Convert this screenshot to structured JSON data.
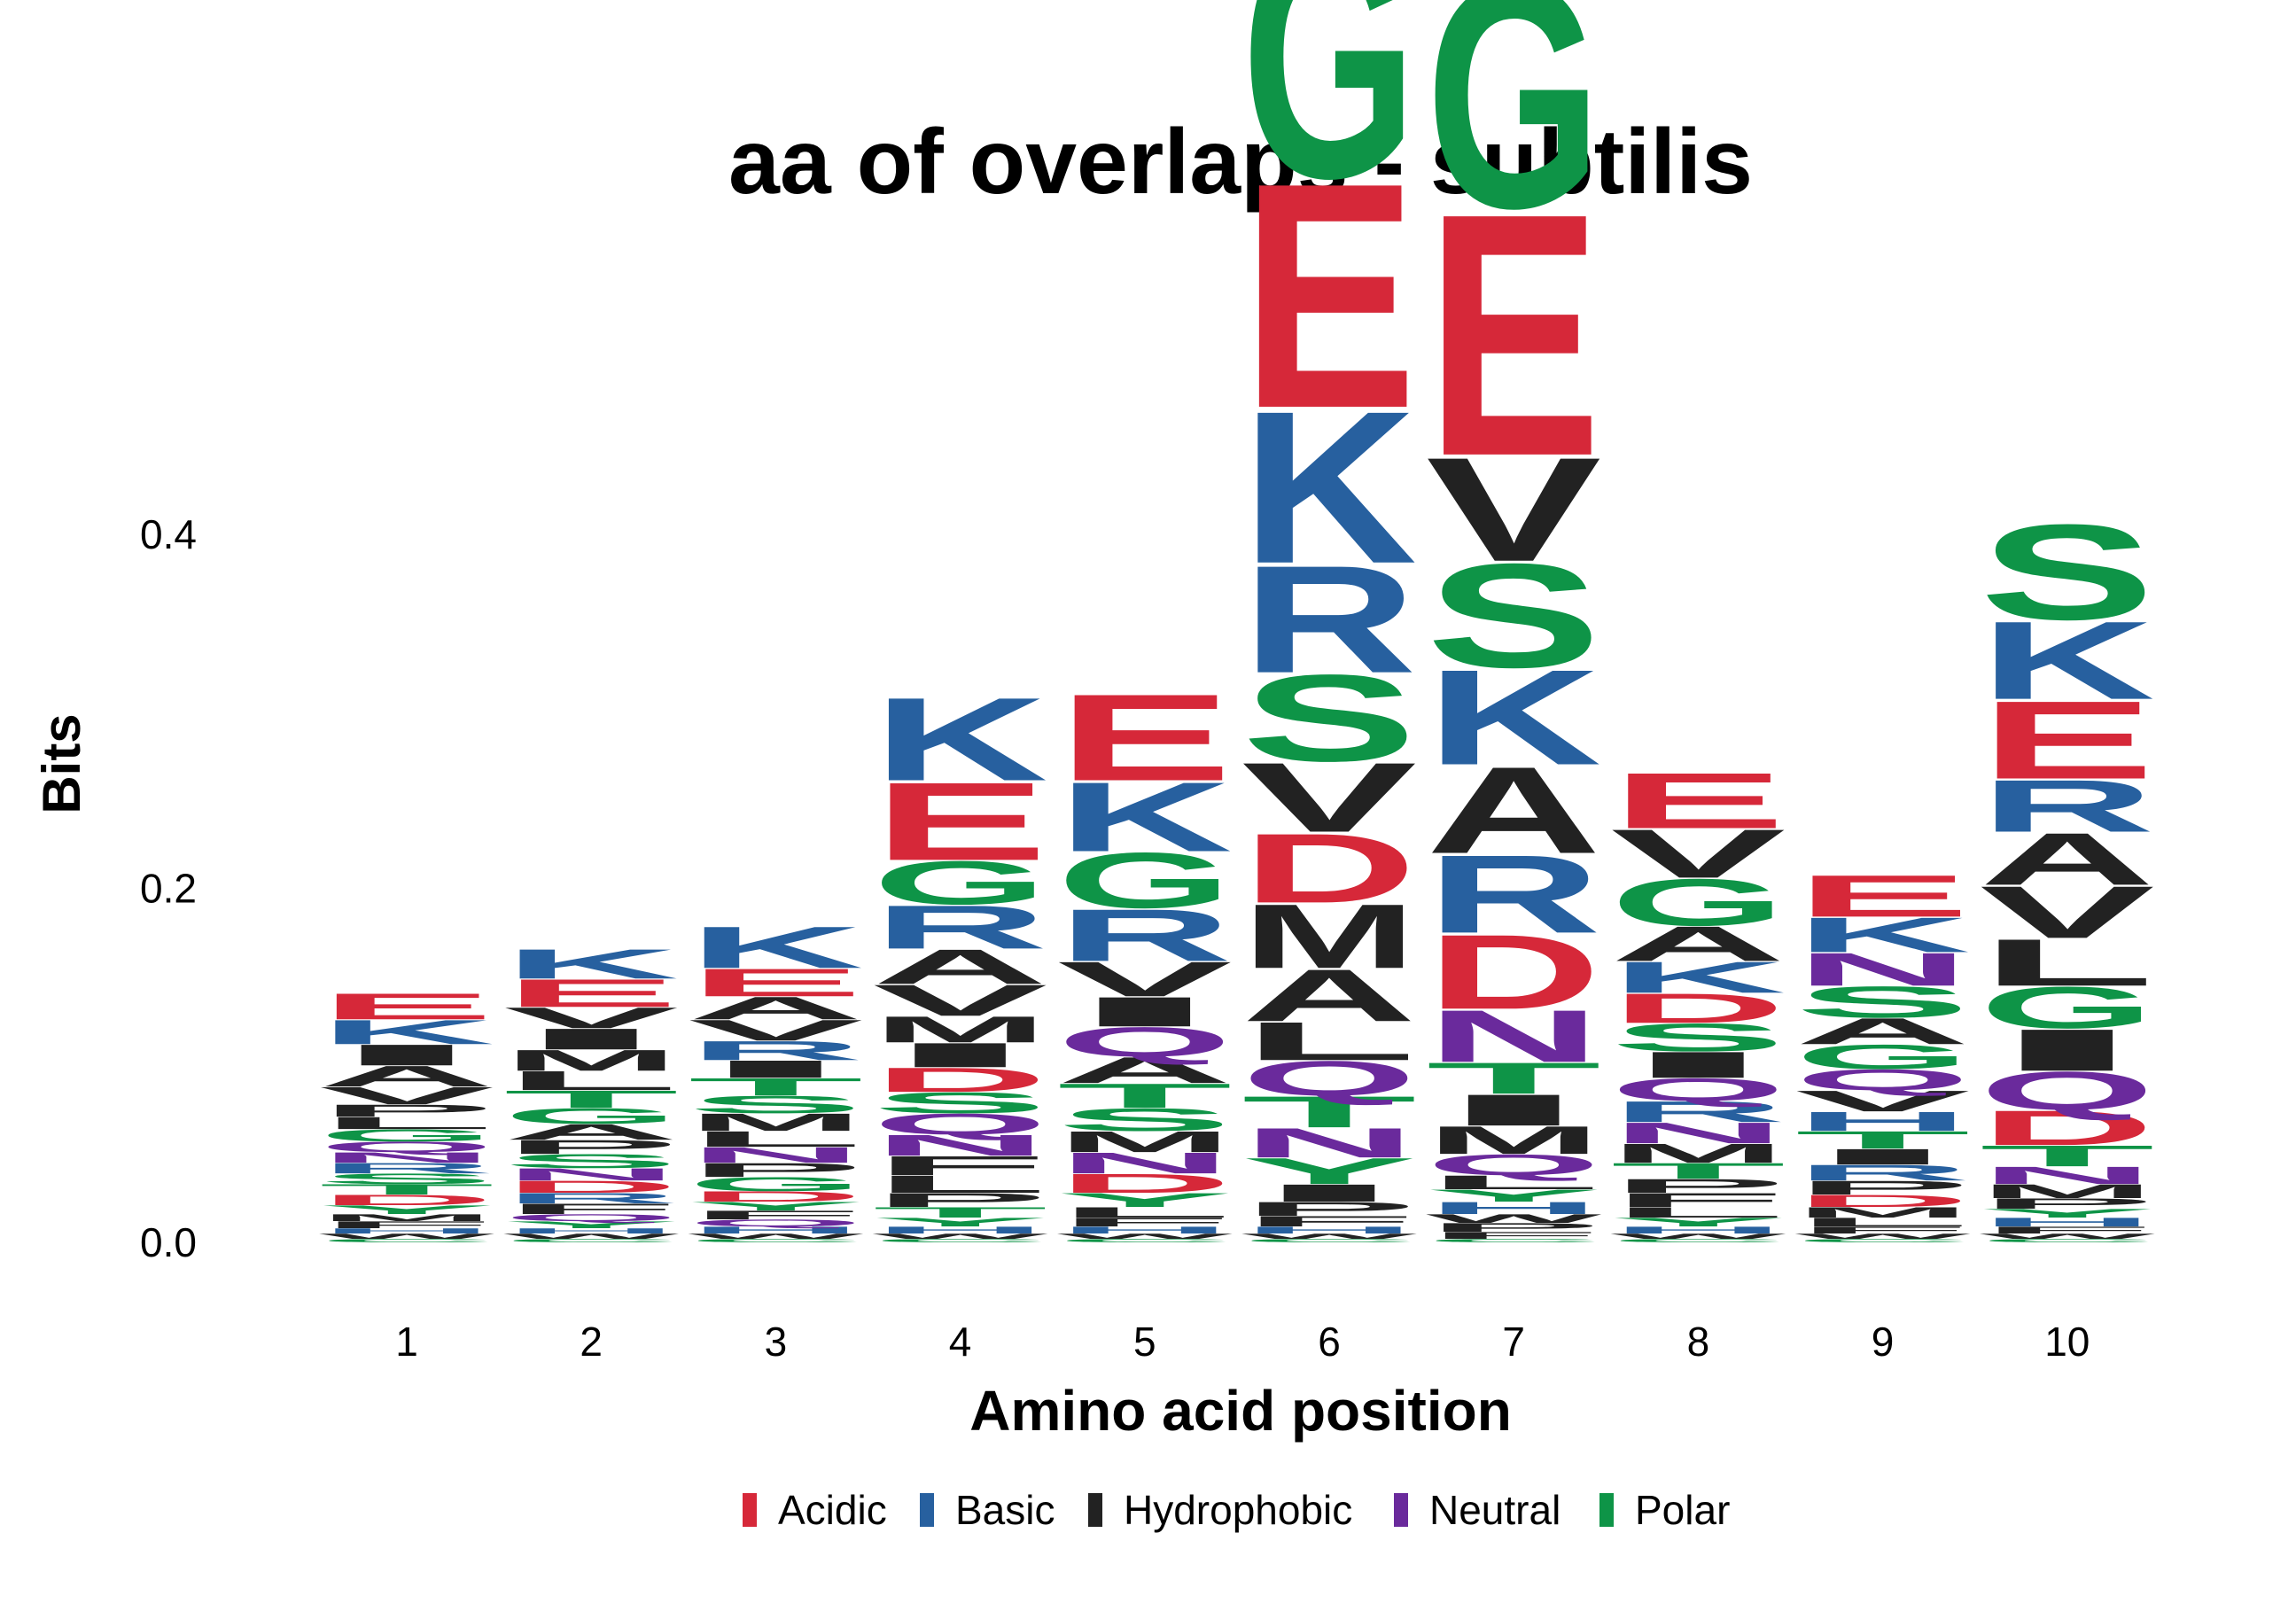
{
  "chart_data": {
    "type": "sequence-logo",
    "title": "aa of overlaps - subtilis",
    "xlabel": "Amino acid position",
    "ylabel": "Bits",
    "ylim": [
      0,
      0.55
    ],
    "yticks": [
      0.0,
      0.2,
      0.4
    ],
    "ytick_labels": [
      "0.0",
      "0.2",
      "0.4"
    ],
    "grid": false,
    "legend_position": "bottom",
    "colors": {
      "Acidic": "#D62839",
      "Basic": "#27609F",
      "Hydrophobic": "#222222",
      "Neutral": "#6A2A9C",
      "Polar": "#0E9447"
    },
    "legend": [
      "Acidic",
      "Basic",
      "Hydrophobic",
      "Neutral",
      "Polar"
    ],
    "residue_class": {
      "D": "Acidic",
      "E": "Acidic",
      "K": "Basic",
      "R": "Basic",
      "H": "Basic",
      "A": "Hydrophobic",
      "V": "Hydrophobic",
      "L": "Hydrophobic",
      "I": "Hydrophobic",
      "M": "Hydrophobic",
      "F": "Hydrophobic",
      "W": "Hydrophobic",
      "P": "Hydrophobic",
      "Q": "Neutral",
      "N": "Neutral",
      "G": "Polar",
      "S": "Polar",
      "T": "Polar",
      "Y": "Polar",
      "C": "Polar"
    },
    "positions": [
      {
        "x": 1,
        "letters": [
          {
            "aa": "C",
            "bits": 0.002
          },
          {
            "aa": "W",
            "bits": 0.003
          },
          {
            "aa": "H",
            "bits": 0.003
          },
          {
            "aa": "F",
            "bits": 0.004
          },
          {
            "aa": "M",
            "bits": 0.004
          },
          {
            "aa": "Y",
            "bits": 0.005
          },
          {
            "aa": "D",
            "bits": 0.006
          },
          {
            "aa": "T",
            "bits": 0.006
          },
          {
            "aa": "S",
            "bits": 0.006
          },
          {
            "aa": "R",
            "bits": 0.006
          },
          {
            "aa": "N",
            "bits": 0.006
          },
          {
            "aa": "Q",
            "bits": 0.006
          },
          {
            "aa": "G",
            "bits": 0.007
          },
          {
            "aa": "L",
            "bits": 0.007
          },
          {
            "aa": "P",
            "bits": 0.007
          },
          {
            "aa": "V",
            "bits": 0.01
          },
          {
            "aa": "A",
            "bits": 0.012
          },
          {
            "aa": "I",
            "bits": 0.012
          },
          {
            "aa": "K",
            "bits": 0.014
          },
          {
            "aa": "E",
            "bits": 0.015
          }
        ]
      },
      {
        "x": 2,
        "letters": [
          {
            "aa": "C",
            "bits": 0.002
          },
          {
            "aa": "W",
            "bits": 0.003
          },
          {
            "aa": "H",
            "bits": 0.003
          },
          {
            "aa": "Y",
            "bits": 0.004
          },
          {
            "aa": "Q",
            "bits": 0.004
          },
          {
            "aa": "F",
            "bits": 0.006
          },
          {
            "aa": "R",
            "bits": 0.006
          },
          {
            "aa": "D",
            "bits": 0.007
          },
          {
            "aa": "N",
            "bits": 0.007
          },
          {
            "aa": "S",
            "bits": 0.008
          },
          {
            "aa": "P",
            "bits": 0.008
          },
          {
            "aa": "A",
            "bits": 0.009
          },
          {
            "aa": "G",
            "bits": 0.009
          },
          {
            "aa": "T",
            "bits": 0.01
          },
          {
            "aa": "L",
            "bits": 0.011
          },
          {
            "aa": "M",
            "bits": 0.012
          },
          {
            "aa": "I",
            "bits": 0.012
          },
          {
            "aa": "V",
            "bits": 0.012
          },
          {
            "aa": "E",
            "bits": 0.016
          },
          {
            "aa": "K",
            "bits": 0.017
          }
        ]
      },
      {
        "x": 3,
        "letters": [
          {
            "aa": "C",
            "bits": 0.002
          },
          {
            "aa": "W",
            "bits": 0.003
          },
          {
            "aa": "H",
            "bits": 0.004
          },
          {
            "aa": "Q",
            "bits": 0.004
          },
          {
            "aa": "F",
            "bits": 0.005
          },
          {
            "aa": "Y",
            "bits": 0.005
          },
          {
            "aa": "D",
            "bits": 0.006
          },
          {
            "aa": "G",
            "bits": 0.008
          },
          {
            "aa": "P",
            "bits": 0.008
          },
          {
            "aa": "N",
            "bits": 0.009
          },
          {
            "aa": "L",
            "bits": 0.009
          },
          {
            "aa": "M",
            "bits": 0.01
          },
          {
            "aa": "S",
            "bits": 0.01
          },
          {
            "aa": "T",
            "bits": 0.01
          },
          {
            "aa": "I",
            "bits": 0.01
          },
          {
            "aa": "R",
            "bits": 0.011
          },
          {
            "aa": "V",
            "bits": 0.012
          },
          {
            "aa": "A",
            "bits": 0.013
          },
          {
            "aa": "E",
            "bits": 0.016
          },
          {
            "aa": "K",
            "bits": 0.024
          }
        ]
      },
      {
        "x": 4,
        "letters": [
          {
            "aa": "C",
            "bits": 0.002
          },
          {
            "aa": "W",
            "bits": 0.003
          },
          {
            "aa": "H",
            "bits": 0.004
          },
          {
            "aa": "Y",
            "bits": 0.005
          },
          {
            "aa": "T",
            "bits": 0.006
          },
          {
            "aa": "P",
            "bits": 0.008
          },
          {
            "aa": "L",
            "bits": 0.01
          },
          {
            "aa": "F",
            "bits": 0.011
          },
          {
            "aa": "N",
            "bits": 0.012
          },
          {
            "aa": "Q",
            "bits": 0.012
          },
          {
            "aa": "S",
            "bits": 0.012
          },
          {
            "aa": "D",
            "bits": 0.014
          },
          {
            "aa": "I",
            "bits": 0.014
          },
          {
            "aa": "M",
            "bits": 0.015
          },
          {
            "aa": "V",
            "bits": 0.018
          },
          {
            "aa": "A",
            "bits": 0.02
          },
          {
            "aa": "R",
            "bits": 0.025
          },
          {
            "aa": "G",
            "bits": 0.025
          },
          {
            "aa": "E",
            "bits": 0.045
          },
          {
            "aa": "K",
            "bits": 0.048
          }
        ]
      },
      {
        "x": 5,
        "letters": [
          {
            "aa": "C",
            "bits": 0.002
          },
          {
            "aa": "W",
            "bits": 0.003
          },
          {
            "aa": "H",
            "bits": 0.004
          },
          {
            "aa": "F",
            "bits": 0.005
          },
          {
            "aa": "L",
            "bits": 0.006
          },
          {
            "aa": "Y",
            "bits": 0.008
          },
          {
            "aa": "D",
            "bits": 0.011
          },
          {
            "aa": "N",
            "bits": 0.012
          },
          {
            "aa": "M",
            "bits": 0.012
          },
          {
            "aa": "S",
            "bits": 0.013
          },
          {
            "aa": "T",
            "bits": 0.014
          },
          {
            "aa": "A",
            "bits": 0.015
          },
          {
            "aa": "Q",
            "bits": 0.017
          },
          {
            "aa": "I",
            "bits": 0.017
          },
          {
            "aa": "V",
            "bits": 0.02
          },
          {
            "aa": "R",
            "bits": 0.03
          },
          {
            "aa": "G",
            "bits": 0.032
          },
          {
            "aa": "K",
            "bits": 0.04
          },
          {
            "aa": "E",
            "bits": 0.05
          }
        ]
      },
      {
        "x": 6,
        "letters": [
          {
            "aa": "C",
            "bits": 0.002
          },
          {
            "aa": "W",
            "bits": 0.003
          },
          {
            "aa": "H",
            "bits": 0.004
          },
          {
            "aa": "F",
            "bits": 0.006
          },
          {
            "aa": "P",
            "bits": 0.008
          },
          {
            "aa": "I",
            "bits": 0.01
          },
          {
            "aa": "Y",
            "bits": 0.015
          },
          {
            "aa": "N",
            "bits": 0.017
          },
          {
            "aa": "T",
            "bits": 0.018
          },
          {
            "aa": "Q",
            "bits": 0.02
          },
          {
            "aa": "L",
            "bits": 0.022
          },
          {
            "aa": "A",
            "bits": 0.03
          },
          {
            "aa": "M",
            "bits": 0.037
          },
          {
            "aa": "D",
            "bits": 0.04
          },
          {
            "aa": "V",
            "bits": 0.04
          },
          {
            "aa": "S",
            "bits": 0.05
          },
          {
            "aa": "R",
            "bits": 0.062
          },
          {
            "aa": "K",
            "bits": 0.088
          },
          {
            "aa": "E",
            "bits": 0.13
          },
          {
            "aa": "G",
            "bits": 0.14
          }
        ]
      },
      {
        "x": 7,
        "letters": [
          {
            "aa": "C",
            "bits": 0.002
          },
          {
            "aa": "F",
            "bits": 0.004
          },
          {
            "aa": "P",
            "bits": 0.005
          },
          {
            "aa": "W",
            "bits": 0.005
          },
          {
            "aa": "H",
            "bits": 0.007
          },
          {
            "aa": "Y",
            "bits": 0.007
          },
          {
            "aa": "L",
            "bits": 0.008
          },
          {
            "aa": "Q",
            "bits": 0.012
          },
          {
            "aa": "M",
            "bits": 0.016
          },
          {
            "aa": "I",
            "bits": 0.018
          },
          {
            "aa": "T",
            "bits": 0.018
          },
          {
            "aa": "N",
            "bits": 0.03
          },
          {
            "aa": "D",
            "bits": 0.043
          },
          {
            "aa": "R",
            "bits": 0.045
          },
          {
            "aa": "A",
            "bits": 0.05
          },
          {
            "aa": "K",
            "bits": 0.055
          },
          {
            "aa": "S",
            "bits": 0.06
          },
          {
            "aa": "V",
            "bits": 0.06
          },
          {
            "aa": "E",
            "bits": 0.14
          },
          {
            "aa": "G",
            "bits": 0.13
          }
        ]
      },
      {
        "x": 8,
        "letters": [
          {
            "aa": "C",
            "bits": 0.002
          },
          {
            "aa": "W",
            "bits": 0.003
          },
          {
            "aa": "H",
            "bits": 0.004
          },
          {
            "aa": "Y",
            "bits": 0.005
          },
          {
            "aa": "L",
            "bits": 0.006
          },
          {
            "aa": "F",
            "bits": 0.008
          },
          {
            "aa": "P",
            "bits": 0.008
          },
          {
            "aa": "T",
            "bits": 0.009
          },
          {
            "aa": "M",
            "bits": 0.011
          },
          {
            "aa": "N",
            "bits": 0.012
          },
          {
            "aa": "R",
            "bits": 0.012
          },
          {
            "aa": "Q",
            "bits": 0.013
          },
          {
            "aa": "I",
            "bits": 0.015
          },
          {
            "aa": "S",
            "bits": 0.016
          },
          {
            "aa": "D",
            "bits": 0.017
          },
          {
            "aa": "K",
            "bits": 0.018
          },
          {
            "aa": "A",
            "bits": 0.02
          },
          {
            "aa": "G",
            "bits": 0.027
          },
          {
            "aa": "V",
            "bits": 0.028
          },
          {
            "aa": "E",
            "bits": 0.032
          }
        ]
      },
      {
        "x": 9,
        "letters": [
          {
            "aa": "C",
            "bits": 0.002
          },
          {
            "aa": "W",
            "bits": 0.003
          },
          {
            "aa": "F",
            "bits": 0.004
          },
          {
            "aa": "L",
            "bits": 0.005
          },
          {
            "aa": "M",
            "bits": 0.006
          },
          {
            "aa": "D",
            "bits": 0.007
          },
          {
            "aa": "P",
            "bits": 0.008
          },
          {
            "aa": "R",
            "bits": 0.009
          },
          {
            "aa": "I",
            "bits": 0.009
          },
          {
            "aa": "T",
            "bits": 0.01
          },
          {
            "aa": "H",
            "bits": 0.011
          },
          {
            "aa": "V",
            "bits": 0.012
          },
          {
            "aa": "Q",
            "bits": 0.012
          },
          {
            "aa": "G",
            "bits": 0.014
          },
          {
            "aa": "A",
            "bits": 0.015
          },
          {
            "aa": "S",
            "bits": 0.018
          },
          {
            "aa": "N",
            "bits": 0.019
          },
          {
            "aa": "K",
            "bits": 0.02
          },
          {
            "aa": "E",
            "bits": 0.024
          }
        ]
      },
      {
        "x": 10,
        "letters": [
          {
            "aa": "C",
            "bits": 0.002
          },
          {
            "aa": "W",
            "bits": 0.003
          },
          {
            "aa": "F",
            "bits": 0.004
          },
          {
            "aa": "H",
            "bits": 0.005
          },
          {
            "aa": "Y",
            "bits": 0.005
          },
          {
            "aa": "P",
            "bits": 0.006
          },
          {
            "aa": "M",
            "bits": 0.008
          },
          {
            "aa": "N",
            "bits": 0.01
          },
          {
            "aa": "T",
            "bits": 0.012
          },
          {
            "aa": "D",
            "bits": 0.02
          },
          {
            "aa": "Q",
            "bits": 0.022
          },
          {
            "aa": "I",
            "bits": 0.024
          },
          {
            "aa": "G",
            "bits": 0.024
          },
          {
            "aa": "L",
            "bits": 0.027
          },
          {
            "aa": "V",
            "bits": 0.03
          },
          {
            "aa": "A",
            "bits": 0.03
          },
          {
            "aa": "R",
            "bits": 0.03
          },
          {
            "aa": "E",
            "bits": 0.045
          },
          {
            "aa": "K",
            "bits": 0.045
          },
          {
            "aa": "S",
            "bits": 0.055
          }
        ]
      }
    ]
  }
}
